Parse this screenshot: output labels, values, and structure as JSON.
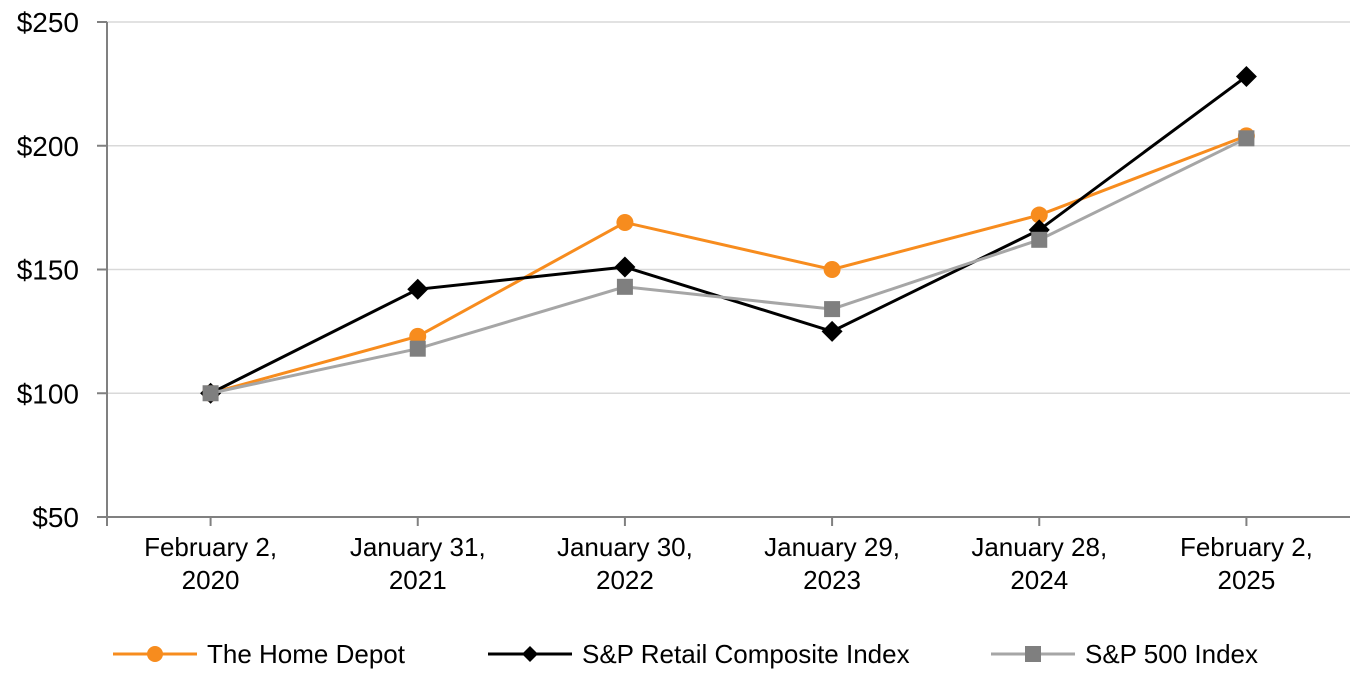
{
  "chart_data": {
    "type": "line",
    "title": "",
    "xlabel": "",
    "ylabel": "",
    "ylim": [
      50,
      250
    ],
    "grid": "horizontal",
    "legend_position": "bottom",
    "categories": [
      "February 2, 2020",
      "January 31, 2021",
      "January 30, 2022",
      "January 29, 2023",
      "January 28, 2024",
      "February 2, 2025"
    ],
    "category_lines": [
      [
        "February 2,",
        "2020"
      ],
      [
        "January 31,",
        "2021"
      ],
      [
        "January 30,",
        "2022"
      ],
      [
        "January 29,",
        "2023"
      ],
      [
        "January 28,",
        "2024"
      ],
      [
        "February 2,",
        "2025"
      ]
    ],
    "y_axis": {
      "min": 50,
      "max": 250,
      "step": 50,
      "tick_labels": [
        "$50",
        "$100",
        "$150",
        "$200",
        "$250"
      ]
    },
    "series": [
      {
        "name": "The Home Depot",
        "marker": "circle",
        "line_color": "#F78C1E",
        "marker_color": "#F78C1E",
        "values": [
          100,
          123,
          169,
          150,
          172,
          204
        ]
      },
      {
        "name": "S&P Retail Composite Index",
        "marker": "diamond",
        "line_color": "#000000",
        "marker_color": "#000000",
        "values": [
          100,
          142,
          151,
          125,
          166,
          228
        ]
      },
      {
        "name": "S&P 500 Index",
        "marker": "square",
        "line_color": "#A6A6A6",
        "marker_color": "#7F7F7F",
        "values": [
          100,
          118,
          143,
          134,
          162,
          203
        ]
      }
    ],
    "colors": {
      "axis": "#808080",
      "gridline": "#D9D9D9",
      "text": "#000000"
    }
  }
}
